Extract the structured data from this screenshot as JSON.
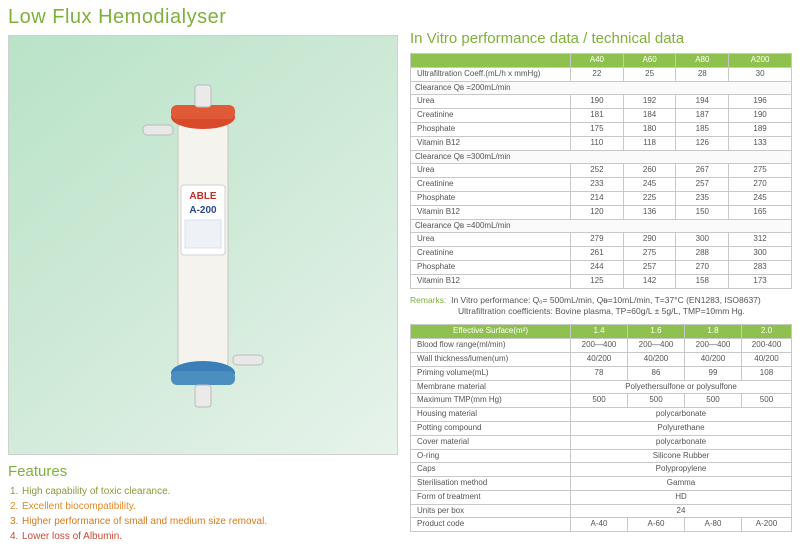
{
  "title": "Low Flux Hemodialyser",
  "title_color": "#7fb13a",
  "product_image": {
    "background_gradient": [
      "#b9e3c8",
      "#cde9d6",
      "#e7f3eb"
    ],
    "label_brand": "ABLE",
    "label_model": "A-200",
    "top_cap_color": "#d94a2a",
    "bottom_cap_color": "#3a7fb8",
    "body_color": "#f5f3ee"
  },
  "features": {
    "heading": "Features",
    "heading_color": "#7fb13a",
    "items": [
      {
        "num": "1.",
        "text": "High capability of toxic clearance.",
        "color": "#8a9a3a"
      },
      {
        "num": "2.",
        "text": "Excellent biocompatibility.",
        "color": "#e08a2a"
      },
      {
        "num": "3.",
        "text": "Higher performance of small and medium size removal.",
        "color": "#d87a1e"
      },
      {
        "num": "4.",
        "text": "Lower loss of Albumin.",
        "color": "#c94a3a"
      }
    ]
  },
  "section1": {
    "heading": "In Vitro performance data / technical data",
    "heading_color": "#7fb13a",
    "columns": [
      "A40",
      "A60",
      "A80",
      "A200"
    ],
    "header_bg": "#8fc14f",
    "rows": [
      {
        "type": "row",
        "label": "Ultrafiltration Coeff.(mL/h x mmHg)",
        "vals": [
          "22",
          "25",
          "28",
          "30"
        ]
      },
      {
        "type": "section",
        "label": "Clearance Qʙ =200mL/min"
      },
      {
        "type": "row",
        "label": "Urea",
        "vals": [
          "190",
          "192",
          "194",
          "196"
        ]
      },
      {
        "type": "row",
        "label": "Creatinine",
        "vals": [
          "181",
          "184",
          "187",
          "190"
        ]
      },
      {
        "type": "row",
        "label": "Phosphate",
        "vals": [
          "175",
          "180",
          "185",
          "189"
        ]
      },
      {
        "type": "row",
        "label": "Vitamin B12",
        "vals": [
          "110",
          "118",
          "126",
          "133"
        ]
      },
      {
        "type": "section",
        "label": "Clearance Qʙ =300mL/min"
      },
      {
        "type": "row",
        "label": "Urea",
        "vals": [
          "252",
          "260",
          "267",
          "275"
        ]
      },
      {
        "type": "row",
        "label": "Creatinine",
        "vals": [
          "233",
          "245",
          "257",
          "270"
        ]
      },
      {
        "type": "row",
        "label": "Phosphate",
        "vals": [
          "214",
          "225",
          "235",
          "245"
        ]
      },
      {
        "type": "row",
        "label": "Vitamin B12",
        "vals": [
          "120",
          "136",
          "150",
          "165"
        ]
      },
      {
        "type": "section",
        "label": "Clearance Qʙ =400mL/min"
      },
      {
        "type": "row",
        "label": "Urea",
        "vals": [
          "279",
          "290",
          "300",
          "312"
        ]
      },
      {
        "type": "row",
        "label": "Creatinine",
        "vals": [
          "261",
          "275",
          "288",
          "300"
        ]
      },
      {
        "type": "row",
        "label": "Phosphate",
        "vals": [
          "244",
          "257",
          "270",
          "283"
        ]
      },
      {
        "type": "row",
        "label": "Vitamin B12",
        "vals": [
          "125",
          "142",
          "158",
          "173"
        ]
      }
    ]
  },
  "remarks": {
    "label": "Remarks:",
    "label_color": "#7fb13a",
    "line1": "In Vitro performance: Qₒ= 500mL/min, Qᴃ=10mL/min, T=37°C  (EN1283, ISO8637)",
    "line2": "Ultrafiltration coefficients: Bovine plasma, TP=60g/L ± 5g/L, TMP=10mm Hg."
  },
  "section2": {
    "columns_header": "Effective Surface(m²)",
    "columns": [
      "1.4",
      "1.6",
      "1.8",
      "2.0"
    ],
    "rows": [
      {
        "label": "Blood flow range(ml/min)",
        "vals": [
          "200—400",
          "200—400",
          "200—400",
          "200-400"
        ]
      },
      {
        "label": "Wall thickness/lumen(um)",
        "vals": [
          "40/200",
          "40/200",
          "40/200",
          "40/200"
        ]
      },
      {
        "label": "Priming volume(mL)",
        "vals": [
          "78",
          "86",
          "99",
          "108"
        ]
      },
      {
        "label": "Membrane material",
        "span": "Polyethersulfone or polysulfone"
      },
      {
        "label": "Maximum TMP(mm Hg)",
        "vals": [
          "500",
          "500",
          "500",
          "500"
        ]
      },
      {
        "label": "Housing material",
        "span": "polycarbonate"
      },
      {
        "label": "Potting compound",
        "span": "Polyurethane"
      },
      {
        "label": "Cover material",
        "span": "polycarbonate"
      },
      {
        "label": "O-ring",
        "span": "Silicone Rubber"
      },
      {
        "label": "Caps",
        "span": "Polypropylene"
      },
      {
        "label": "Sterilisation method",
        "span": "Gamma"
      },
      {
        "label": "Form of treatment",
        "span": "HD"
      },
      {
        "label": "Units per box",
        "span": "24"
      },
      {
        "label": "Product code",
        "vals": [
          "A-40",
          "A-60",
          "A-80",
          "A-200"
        ]
      }
    ]
  }
}
